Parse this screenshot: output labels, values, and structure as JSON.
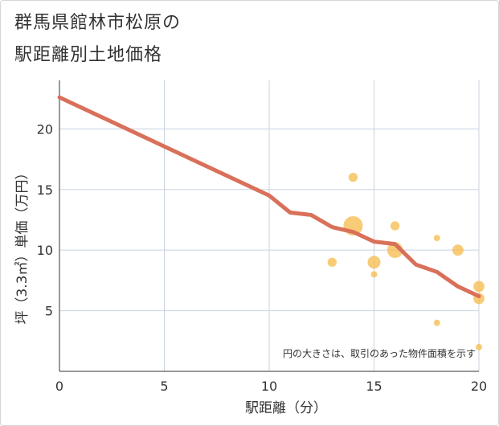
{
  "chart_data": {
    "type": "scatter",
    "title_line1": "群馬県館林市松原の",
    "title_line2": "駅距離別土地価格",
    "xlabel": "駅距離（分）",
    "ylabel": "坪（3.3㎡）単価（万円）",
    "xlim": [
      0,
      20
    ],
    "ylim": [
      0,
      24
    ],
    "xticks": [
      0,
      5,
      10,
      15,
      20
    ],
    "yticks": [
      5,
      10,
      15,
      20
    ],
    "grid": true,
    "note": "円の大きさは、取引のあった物件面積を示す",
    "colors": {
      "line": "#d9705a",
      "bubble": "#f5b94a"
    },
    "points": [
      {
        "x": 13,
        "y": 9.0,
        "size": 2
      },
      {
        "x": 14,
        "y": 16.0,
        "size": 2
      },
      {
        "x": 14,
        "y": 12.0,
        "size": 9
      },
      {
        "x": 15,
        "y": 9.0,
        "size": 4
      },
      {
        "x": 15,
        "y": 8.0,
        "size": 1
      },
      {
        "x": 16,
        "y": 12.0,
        "size": 2
      },
      {
        "x": 16,
        "y": 10.0,
        "size": 6
      },
      {
        "x": 18,
        "y": 11.0,
        "size": 1
      },
      {
        "x": 18,
        "y": 4.0,
        "size": 1
      },
      {
        "x": 19,
        "y": 10.0,
        "size": 3
      },
      {
        "x": 20,
        "y": 7.0,
        "size": 3
      },
      {
        "x": 20,
        "y": 6.0,
        "size": 3
      },
      {
        "x": 20,
        "y": 2.0,
        "size": 1
      }
    ],
    "trend": {
      "name": "trend",
      "x": [
        0,
        10,
        11,
        12,
        13,
        14,
        15,
        16,
        17,
        18,
        19,
        20
      ],
      "y": [
        22.6,
        14.5,
        13.1,
        12.9,
        11.9,
        11.5,
        10.7,
        10.5,
        8.8,
        8.2,
        7.0,
        6.2
      ]
    }
  }
}
